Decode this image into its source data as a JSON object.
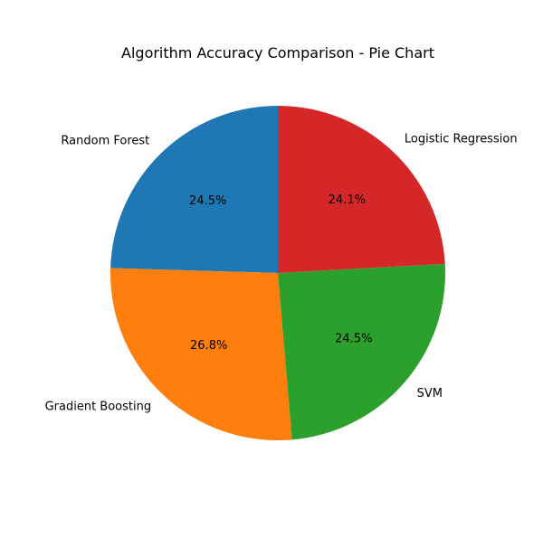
{
  "chart_data": {
    "type": "pie",
    "title": "Algorithm Accuracy Comparison - Pie Chart",
    "start_angle_deg": 90,
    "direction": "counterclockwise",
    "slices": [
      {
        "label": "Random Forest",
        "percent_label": "24.5%",
        "value": 24.5,
        "color": "#1f77b4"
      },
      {
        "label": "Gradient Boosting",
        "percent_label": "26.8%",
        "value": 26.8,
        "color": "#ff7f0e"
      },
      {
        "label": "SVM",
        "percent_label": "24.5%",
        "value": 24.5,
        "color": "#2ca02c"
      },
      {
        "label": "Logistic Regression",
        "percent_label": "24.1%",
        "value": 24.1,
        "color": "#d62728"
      }
    ]
  }
}
